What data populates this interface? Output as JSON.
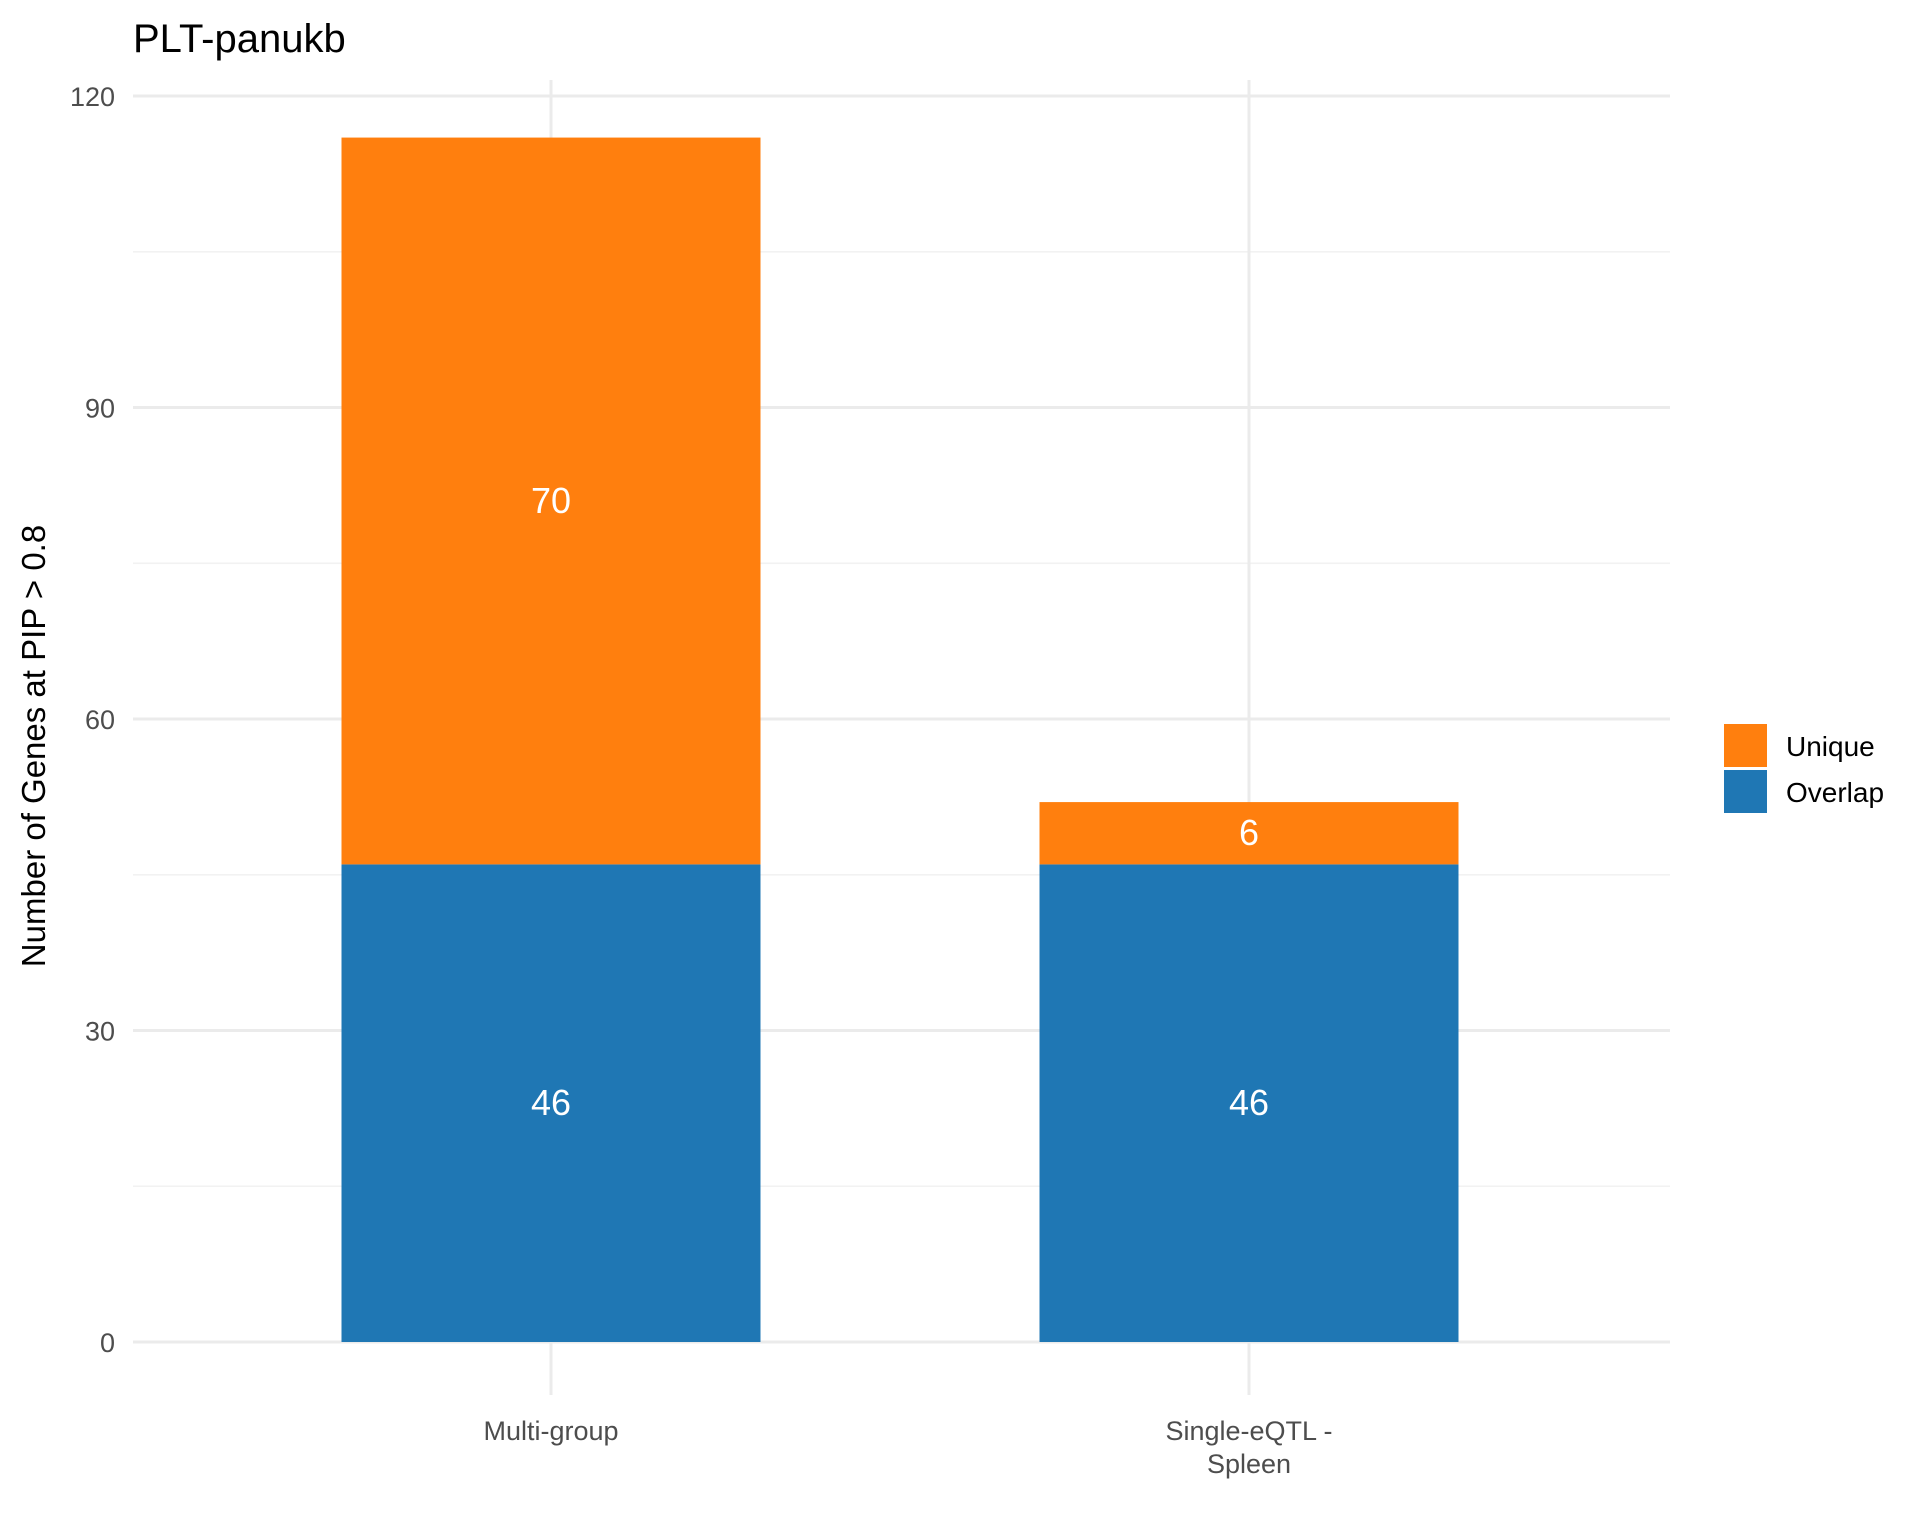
{
  "chart_data": {
    "type": "bar",
    "stacked": true,
    "title": "PLT-panukb",
    "xlabel": "",
    "ylabel": "Number of Genes at PIP > 0.8",
    "categories": [
      [
        "Multi-group"
      ],
      [
        "Single-eQTL -",
        "Spleen"
      ]
    ],
    "series": [
      {
        "name": "Overlap",
        "values": [
          46,
          46
        ],
        "color": "#1f77b4"
      },
      {
        "name": "Unique",
        "values": [
          70,
          6
        ],
        "color": "#ff7f0e"
      }
    ],
    "ylim": [
      -2.3,
      122
    ],
    "yticks": [
      0,
      30,
      60,
      90,
      120
    ],
    "grid": true,
    "legend": {
      "placement": "right",
      "order": [
        "Unique",
        "Overlap"
      ]
    }
  }
}
